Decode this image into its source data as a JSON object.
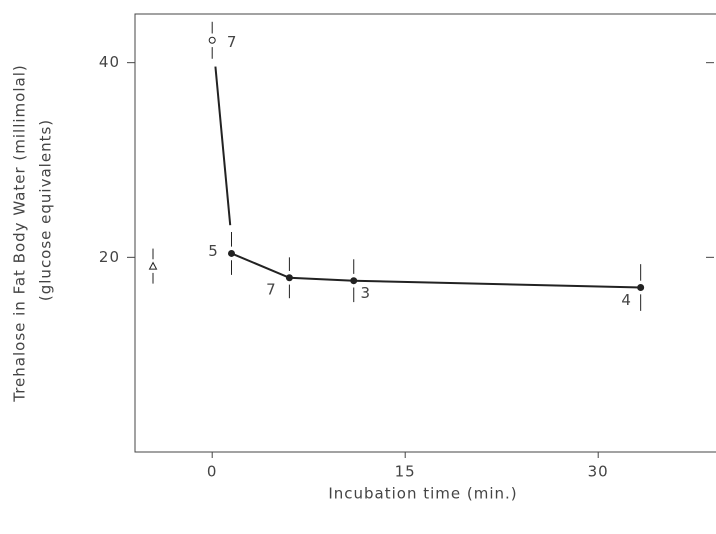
{
  "chart_data": {
    "type": "line",
    "x_label": "Incubation time (min.)",
    "y_label": "Trehalose in Fat Body Water (millimolal)",
    "y_label2": "(glucose equivalents)",
    "xlim": [
      -6,
      39
    ],
    "ylim": [
      0,
      45
    ],
    "xticks": [
      0,
      15,
      30
    ],
    "yticks": [
      20,
      40
    ],
    "series": [
      {
        "color": "#222222",
        "marker": "filled",
        "x": [
          1.5,
          6,
          11,
          33.3
        ],
        "values": [
          20.4,
          17.9,
          17.6,
          16.9
        ],
        "errors": [
          2.2,
          2.1,
          2.2,
          2.4
        ],
        "n": [
          5,
          7,
          3,
          4
        ]
      },
      {
        "color": "#222222",
        "marker": "open",
        "x": [
          0
        ],
        "values": [
          42.3
        ],
        "errors": [
          1.9
        ],
        "n": [
          7
        ]
      },
      {
        "color": "#222222",
        "marker": "triangle",
        "x": [
          -4.6
        ],
        "values": [
          19.1
        ],
        "errors": [
          1.8
        ]
      },
      {
        "color": "#222222",
        "marker": "none",
        "x": [
          0.25,
          1.4
        ],
        "values": [
          39.6,
          23.3
        ]
      }
    ]
  }
}
